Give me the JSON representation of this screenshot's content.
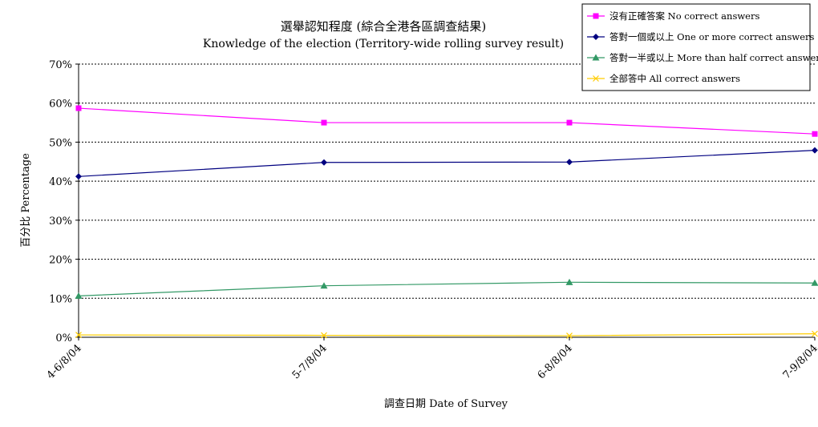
{
  "chart_data": {
    "type": "line",
    "title": "選舉認知程度 (綜合全港各區調查結果)",
    "subtitle": "Knowledge of the election (Territory-wide rolling survey result)",
    "xlabel": "調查日期 Date of Survey",
    "ylabel": "百分比 Percentage",
    "categories": [
      "4-6/8/04",
      "5-7/8/04",
      "6-8/8/04",
      "7-9/8/04"
    ],
    "y_ticks": [
      "0%",
      "10%",
      "20%",
      "30%",
      "40%",
      "50%",
      "60%",
      "70%"
    ],
    "ylim": [
      0,
      70
    ],
    "grid": "horizontal dashed",
    "legend_position": "top-right",
    "series": [
      {
        "name": "沒有正確答案 No correct answers",
        "values": [
          58.7,
          55.0,
          55.0,
          52.1
        ],
        "color": "#ff00ff",
        "marker": "square"
      },
      {
        "name": "答對一個或以上 One or more correct answers",
        "values": [
          41.2,
          44.8,
          44.9,
          47.9
        ],
        "color": "#000080",
        "marker": "diamond"
      },
      {
        "name": "答對一半或以上 More than half correct answers",
        "values": [
          10.6,
          13.2,
          14.1,
          13.9
        ],
        "color": "#339966",
        "marker": "triangle"
      },
      {
        "name": "全部答中 All correct answers",
        "values": [
          0.6,
          0.5,
          0.4,
          0.9
        ],
        "color": "#ffcc00",
        "marker": "x"
      }
    ]
  }
}
